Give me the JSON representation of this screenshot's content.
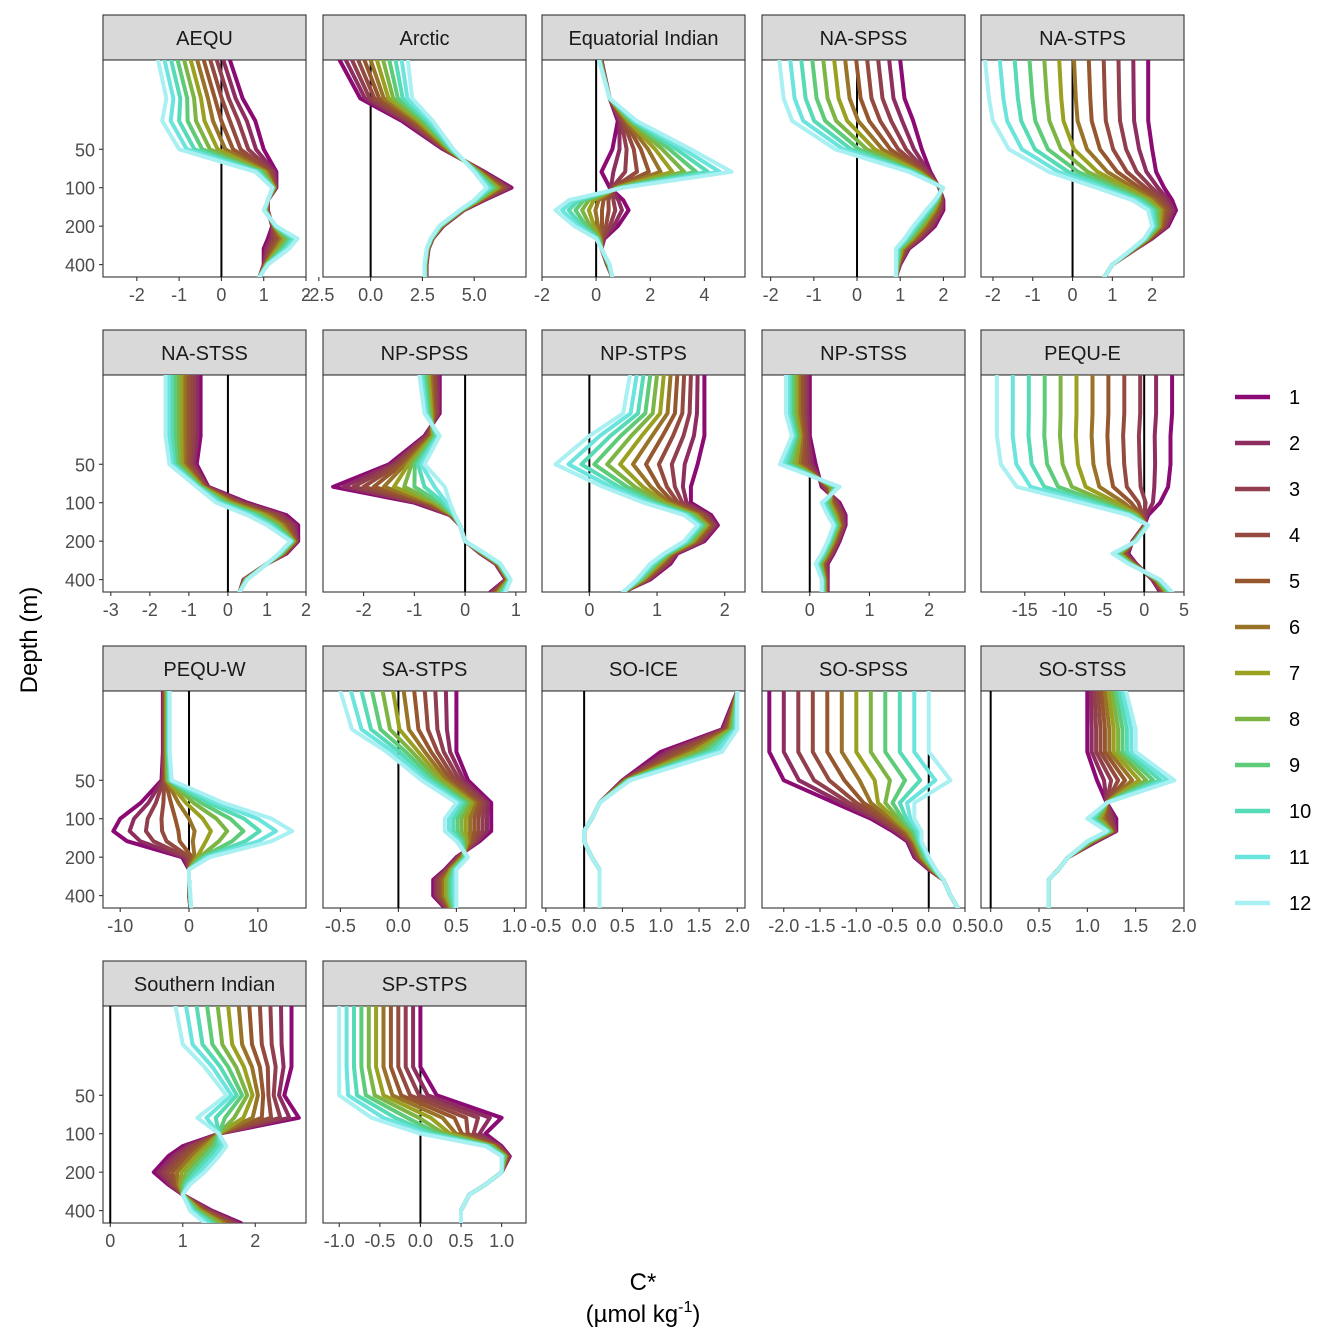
{
  "chart_data": {
    "type": "line",
    "ylabel": "Depth (m)",
    "xlabel": "C*",
    "xlabel_units": "(µmol kg",
    "xlabel_units_sup": "-1",
    "xlabel_units_close": ")",
    "y_scale": "log",
    "y_reversed": true,
    "y_ticks": [
      50,
      100,
      200,
      400
    ],
    "y_range": [
      10,
      500
    ],
    "legend": {
      "position": "right",
      "entries": [
        "1",
        "2",
        "3",
        "4",
        "5",
        "6",
        "7",
        "8",
        "9",
        "10",
        "11",
        "12"
      ]
    },
    "colors": [
      "#8B0A74",
      "#8E2D60",
      "#913E4F",
      "#944A3E",
      "#96572E",
      "#987328",
      "#9AA020",
      "#7DB545",
      "#5DCB78",
      "#56DBB6",
      "#6BE4DD",
      "#A9F0F2"
    ],
    "depths": [
      10,
      20,
      30,
      50,
      75,
      100,
      125,
      150,
      200,
      250,
      300,
      400,
      500
    ],
    "panels": [
      {
        "title": "AEQU",
        "xlim": [
          -2.8,
          2.0
        ],
        "xticks": [
          "-2",
          "-1",
          "0",
          "1",
          "2"
        ],
        "xtick_values": [
          -2,
          -1,
          0,
          1,
          2
        ],
        "first": [
          0.2,
          0.5,
          0.8,
          1.0,
          1.3,
          1.3,
          1.1,
          1.1,
          1.2,
          1.1,
          1.0,
          1.0,
          0.9
        ],
        "last": [
          -1.5,
          -1.3,
          -1.4,
          -1.0,
          0.8,
          1.2,
          1.1,
          1.0,
          1.3,
          1.8,
          1.6,
          1.1,
          0.9
        ]
      },
      {
        "title": "Arctic",
        "xlim": [
          -2.3,
          7.5
        ],
        "xticks": [
          "-2.5",
          "0.0",
          "2.5",
          "5.0"
        ],
        "xtick_values": [
          -2.5,
          0,
          2.5,
          5
        ],
        "first": [
          -1.5,
          -0.5,
          1.5,
          3.5,
          5.5,
          6.8,
          5.5,
          4.5,
          3.5,
          3.0,
          2.8,
          2.7,
          2.7
        ],
        "last": [
          1.8,
          2.0,
          3.0,
          4.0,
          5.0,
          5.6,
          5.0,
          4.3,
          3.3,
          2.9,
          2.7,
          2.6,
          2.6
        ]
      },
      {
        "title": "Equatorial Indian",
        "xlim": [
          -2.0,
          5.5
        ],
        "xticks": [
          "-2",
          "0",
          "2",
          "4"
        ],
        "xtick_values": [
          -2,
          0,
          2,
          4
        ],
        "first": [
          0.2,
          0.5,
          0.8,
          0.6,
          0.2,
          0.5,
          1.0,
          1.2,
          0.8,
          0.3,
          0.2,
          0.4,
          0.6
        ],
        "last": [
          0.1,
          0.5,
          1.5,
          3.5,
          5.0,
          1.0,
          -1.0,
          -1.5,
          -0.8,
          0.0,
          0.2,
          0.5,
          0.6
        ]
      },
      {
        "title": "NA-SPSS",
        "xlim": [
          -2.2,
          2.5
        ],
        "xticks": [
          "-2",
          "-1",
          "0",
          "1",
          "2"
        ],
        "xtick_values": [
          -2,
          -1,
          0,
          1,
          2
        ],
        "first": [
          1.0,
          1.1,
          1.3,
          1.5,
          1.7,
          1.9,
          2.0,
          2.0,
          1.8,
          1.5,
          1.2,
          1.0,
          0.9
        ],
        "last": [
          -1.8,
          -1.7,
          -1.5,
          -0.5,
          1.2,
          2.0,
          1.8,
          1.6,
          1.3,
          1.1,
          0.9,
          0.9,
          0.9
        ]
      },
      {
        "title": "NA-STPS",
        "xlim": [
          -2.3,
          2.8
        ],
        "xticks": [
          "-2",
          "-1",
          "0",
          "1",
          "2"
        ],
        "xtick_values": [
          -2,
          -1,
          0,
          1,
          2
        ],
        "first": [
          1.9,
          1.9,
          1.9,
          2.0,
          2.1,
          2.3,
          2.5,
          2.6,
          2.4,
          2.0,
          1.6,
          1.0,
          0.8
        ],
        "last": [
          -2.2,
          -2.1,
          -2.0,
          -1.6,
          -0.6,
          0.6,
          1.5,
          1.9,
          2.0,
          1.8,
          1.5,
          1.0,
          0.8
        ]
      },
      {
        "title": "NA-STSS",
        "xlim": [
          -3.2,
          2.0
        ],
        "xticks": [
          "-3",
          "-2",
          "-1",
          "0",
          "1",
          "2"
        ],
        "xtick_values": [
          -3,
          -2,
          -1,
          0,
          1,
          2
        ],
        "first": [
          -0.7,
          -0.7,
          -0.7,
          -0.8,
          -0.5,
          0.5,
          1.5,
          1.8,
          1.8,
          1.5,
          1.0,
          0.4,
          0.3
        ],
        "last": [
          -1.6,
          -1.6,
          -1.6,
          -1.5,
          -0.8,
          -0.3,
          0.5,
          1.0,
          1.6,
          1.3,
          1.0,
          0.5,
          0.3
        ]
      },
      {
        "title": "NP-SPSS",
        "xlim": [
          -2.8,
          1.2
        ],
        "xticks": [
          "-2",
          "-1",
          "0",
          "1"
        ],
        "xtick_values": [
          -2,
          -1,
          0,
          1
        ],
        "first": [
          -0.5,
          -0.5,
          -0.8,
          -1.5,
          -2.6,
          -1.0,
          -0.3,
          -0.1,
          0.0,
          0.3,
          0.6,
          0.8,
          0.5
        ],
        "last": [
          -0.9,
          -0.8,
          -0.5,
          -0.8,
          -0.4,
          -0.3,
          -0.2,
          -0.1,
          0.0,
          0.4,
          0.7,
          0.9,
          0.8
        ]
      },
      {
        "title": "NP-STPS",
        "xlim": [
          -0.7,
          2.3
        ],
        "xticks": [
          "0",
          "1",
          "2"
        ],
        "xtick_values": [
          0,
          1,
          2
        ],
        "first": [
          1.7,
          1.7,
          1.7,
          1.6,
          1.5,
          1.5,
          1.8,
          1.9,
          1.7,
          1.3,
          1.2,
          0.9,
          0.5
        ],
        "last": [
          0.6,
          0.5,
          0.0,
          -0.5,
          0.2,
          0.8,
          1.4,
          1.6,
          1.4,
          1.1,
          0.9,
          0.7,
          0.5
        ]
      },
      {
        "title": "NP-STSS",
        "xlim": [
          -0.8,
          2.6
        ],
        "xticks": [
          "0",
          "1",
          "2"
        ],
        "xtick_values": [
          0,
          1,
          2
        ],
        "first": [
          0.0,
          0.0,
          0.0,
          0.1,
          0.2,
          0.5,
          0.6,
          0.6,
          0.5,
          0.4,
          0.3,
          0.3,
          0.3
        ],
        "last": [
          -0.4,
          -0.4,
          -0.3,
          -0.5,
          0.5,
          0.2,
          0.3,
          0.4,
          0.3,
          0.2,
          0.1,
          0.2,
          0.2
        ]
      },
      {
        "title": "PEQU-E",
        "xlim": [
          -20.5,
          5.0
        ],
        "xticks": [
          "-15",
          "-10",
          "-5",
          "0",
          "5"
        ],
        "xtick_values": [
          -15,
          -10,
          -5,
          0,
          5
        ],
        "first": [
          3.5,
          3.5,
          3.3,
          3.3,
          3.0,
          2.0,
          0.5,
          0.0,
          -1.5,
          -2.0,
          -1.0,
          1.0,
          2.0
        ],
        "last": [
          -18.5,
          -18.5,
          -18.5,
          -18.0,
          -16.0,
          -8.0,
          -2.0,
          0.5,
          -1.0,
          -4.0,
          -2.0,
          2.0,
          3.5
        ]
      },
      {
        "title": "PEQU-W",
        "xlim": [
          -12.5,
          17.0
        ],
        "xticks": [
          "-10",
          "0",
          "10"
        ],
        "xtick_values": [
          -10,
          0,
          10
        ],
        "first": [
          -3.8,
          -3.8,
          -3.8,
          -4.0,
          -7.0,
          -10.0,
          -11.0,
          -9.0,
          -1.0,
          0.0,
          0.0,
          0.0,
          0.2
        ],
        "last": [
          -2.8,
          -2.8,
          -2.8,
          -2.5,
          5.0,
          12.0,
          15.0,
          12.0,
          3.0,
          0.0,
          0.0,
          0.2,
          0.3
        ]
      },
      {
        "title": "SA-STPS",
        "xlim": [
          -0.65,
          1.1
        ],
        "xticks": [
          "-0.5",
          "0.0",
          "0.5",
          "1.0"
        ],
        "xtick_values": [
          -0.5,
          0,
          0.5,
          1
        ],
        "first": [
          0.5,
          0.5,
          0.5,
          0.6,
          0.8,
          0.8,
          0.8,
          0.7,
          0.5,
          0.4,
          0.3,
          0.3,
          0.4
        ],
        "last": [
          -0.5,
          -0.4,
          -0.1,
          0.2,
          0.5,
          0.4,
          0.4,
          0.5,
          0.6,
          0.5,
          0.5,
          0.5,
          0.5
        ]
      },
      {
        "title": "SO-ICE",
        "xlim": [
          -0.55,
          2.1
        ],
        "xticks": [
          "-0.5",
          "0.0",
          "0.5",
          "1.0",
          "1.5",
          "2.0"
        ],
        "xtick_values": [
          -0.5,
          0,
          0.5,
          1,
          1.5,
          2
        ],
        "first": [
          2.0,
          1.8,
          1.0,
          0.5,
          0.2,
          0.1,
          0.0,
          0.0,
          0.1,
          0.2,
          0.2,
          0.2,
          0.2
        ],
        "last": [
          2.0,
          2.0,
          1.8,
          0.6,
          0.2,
          0.1,
          0.0,
          0.0,
          0.1,
          0.2,
          0.2,
          0.2,
          0.2
        ]
      },
      {
        "title": "SO-SPSS",
        "xlim": [
          -2.3,
          0.5
        ],
        "xticks": [
          "-2.0",
          "-1.5",
          "-1.0",
          "-0.5",
          "0.0",
          "0.5"
        ],
        "xtick_values": [
          -2,
          -1.5,
          -1,
          -0.5,
          0,
          0.5
        ],
        "first": [
          -2.2,
          -2.2,
          -2.2,
          -2.0,
          -1.3,
          -0.8,
          -0.5,
          -0.3,
          -0.2,
          0.0,
          0.2,
          0.3,
          0.4
        ],
        "last": [
          0.0,
          0.0,
          0.0,
          0.3,
          -0.2,
          -0.2,
          -0.1,
          -0.1,
          0.0,
          0.1,
          0.2,
          0.3,
          0.4
        ]
      },
      {
        "title": "SO-STSS",
        "xlim": [
          -0.1,
          2.0
        ],
        "xticks": [
          "0.0",
          "0.5",
          "1.0",
          "1.5",
          "2.0"
        ],
        "xtick_values": [
          0,
          0.5,
          1,
          1.5,
          2
        ],
        "first": [
          1.0,
          1.0,
          1.0,
          1.1,
          1.2,
          1.3,
          1.3,
          1.1,
          0.8,
          0.7,
          0.6,
          0.6,
          0.6
        ],
        "last": [
          1.4,
          1.5,
          1.5,
          1.9,
          1.2,
          1.0,
          1.2,
          1.0,
          0.8,
          0.7,
          0.6,
          0.6,
          0.6
        ]
      },
      {
        "title": "Southern Indian",
        "xlim": [
          -0.1,
          2.7
        ],
        "xticks": [
          "0",
          "1",
          "2"
        ],
        "xtick_values": [
          0,
          1,
          2
        ],
        "first": [
          2.5,
          2.5,
          2.5,
          2.4,
          2.6,
          1.5,
          1.0,
          0.8,
          0.6,
          0.8,
          1.0,
          1.4,
          1.8
        ],
        "last": [
          0.9,
          1.0,
          1.3,
          1.6,
          1.2,
          1.5,
          1.6,
          1.5,
          1.3,
          1.1,
          1.0,
          1.1,
          1.3
        ]
      },
      {
        "title": "SP-STPS",
        "xlim": [
          -1.2,
          1.3
        ],
        "xticks": [
          "-1.0",
          "-0.5",
          "0.0",
          "0.5",
          "1.0"
        ],
        "xtick_values": [
          -1,
          -0.5,
          0,
          0.5,
          1
        ],
        "first": [
          0.0,
          0.0,
          0.0,
          0.2,
          1.0,
          0.8,
          1.0,
          1.1,
          1.0,
          0.8,
          0.6,
          0.5,
          0.5
        ],
        "last": [
          -1.0,
          -1.0,
          -1.0,
          -1.0,
          -0.6,
          0.0,
          0.8,
          1.0,
          1.0,
          0.8,
          0.6,
          0.5,
          0.5
        ]
      }
    ]
  }
}
